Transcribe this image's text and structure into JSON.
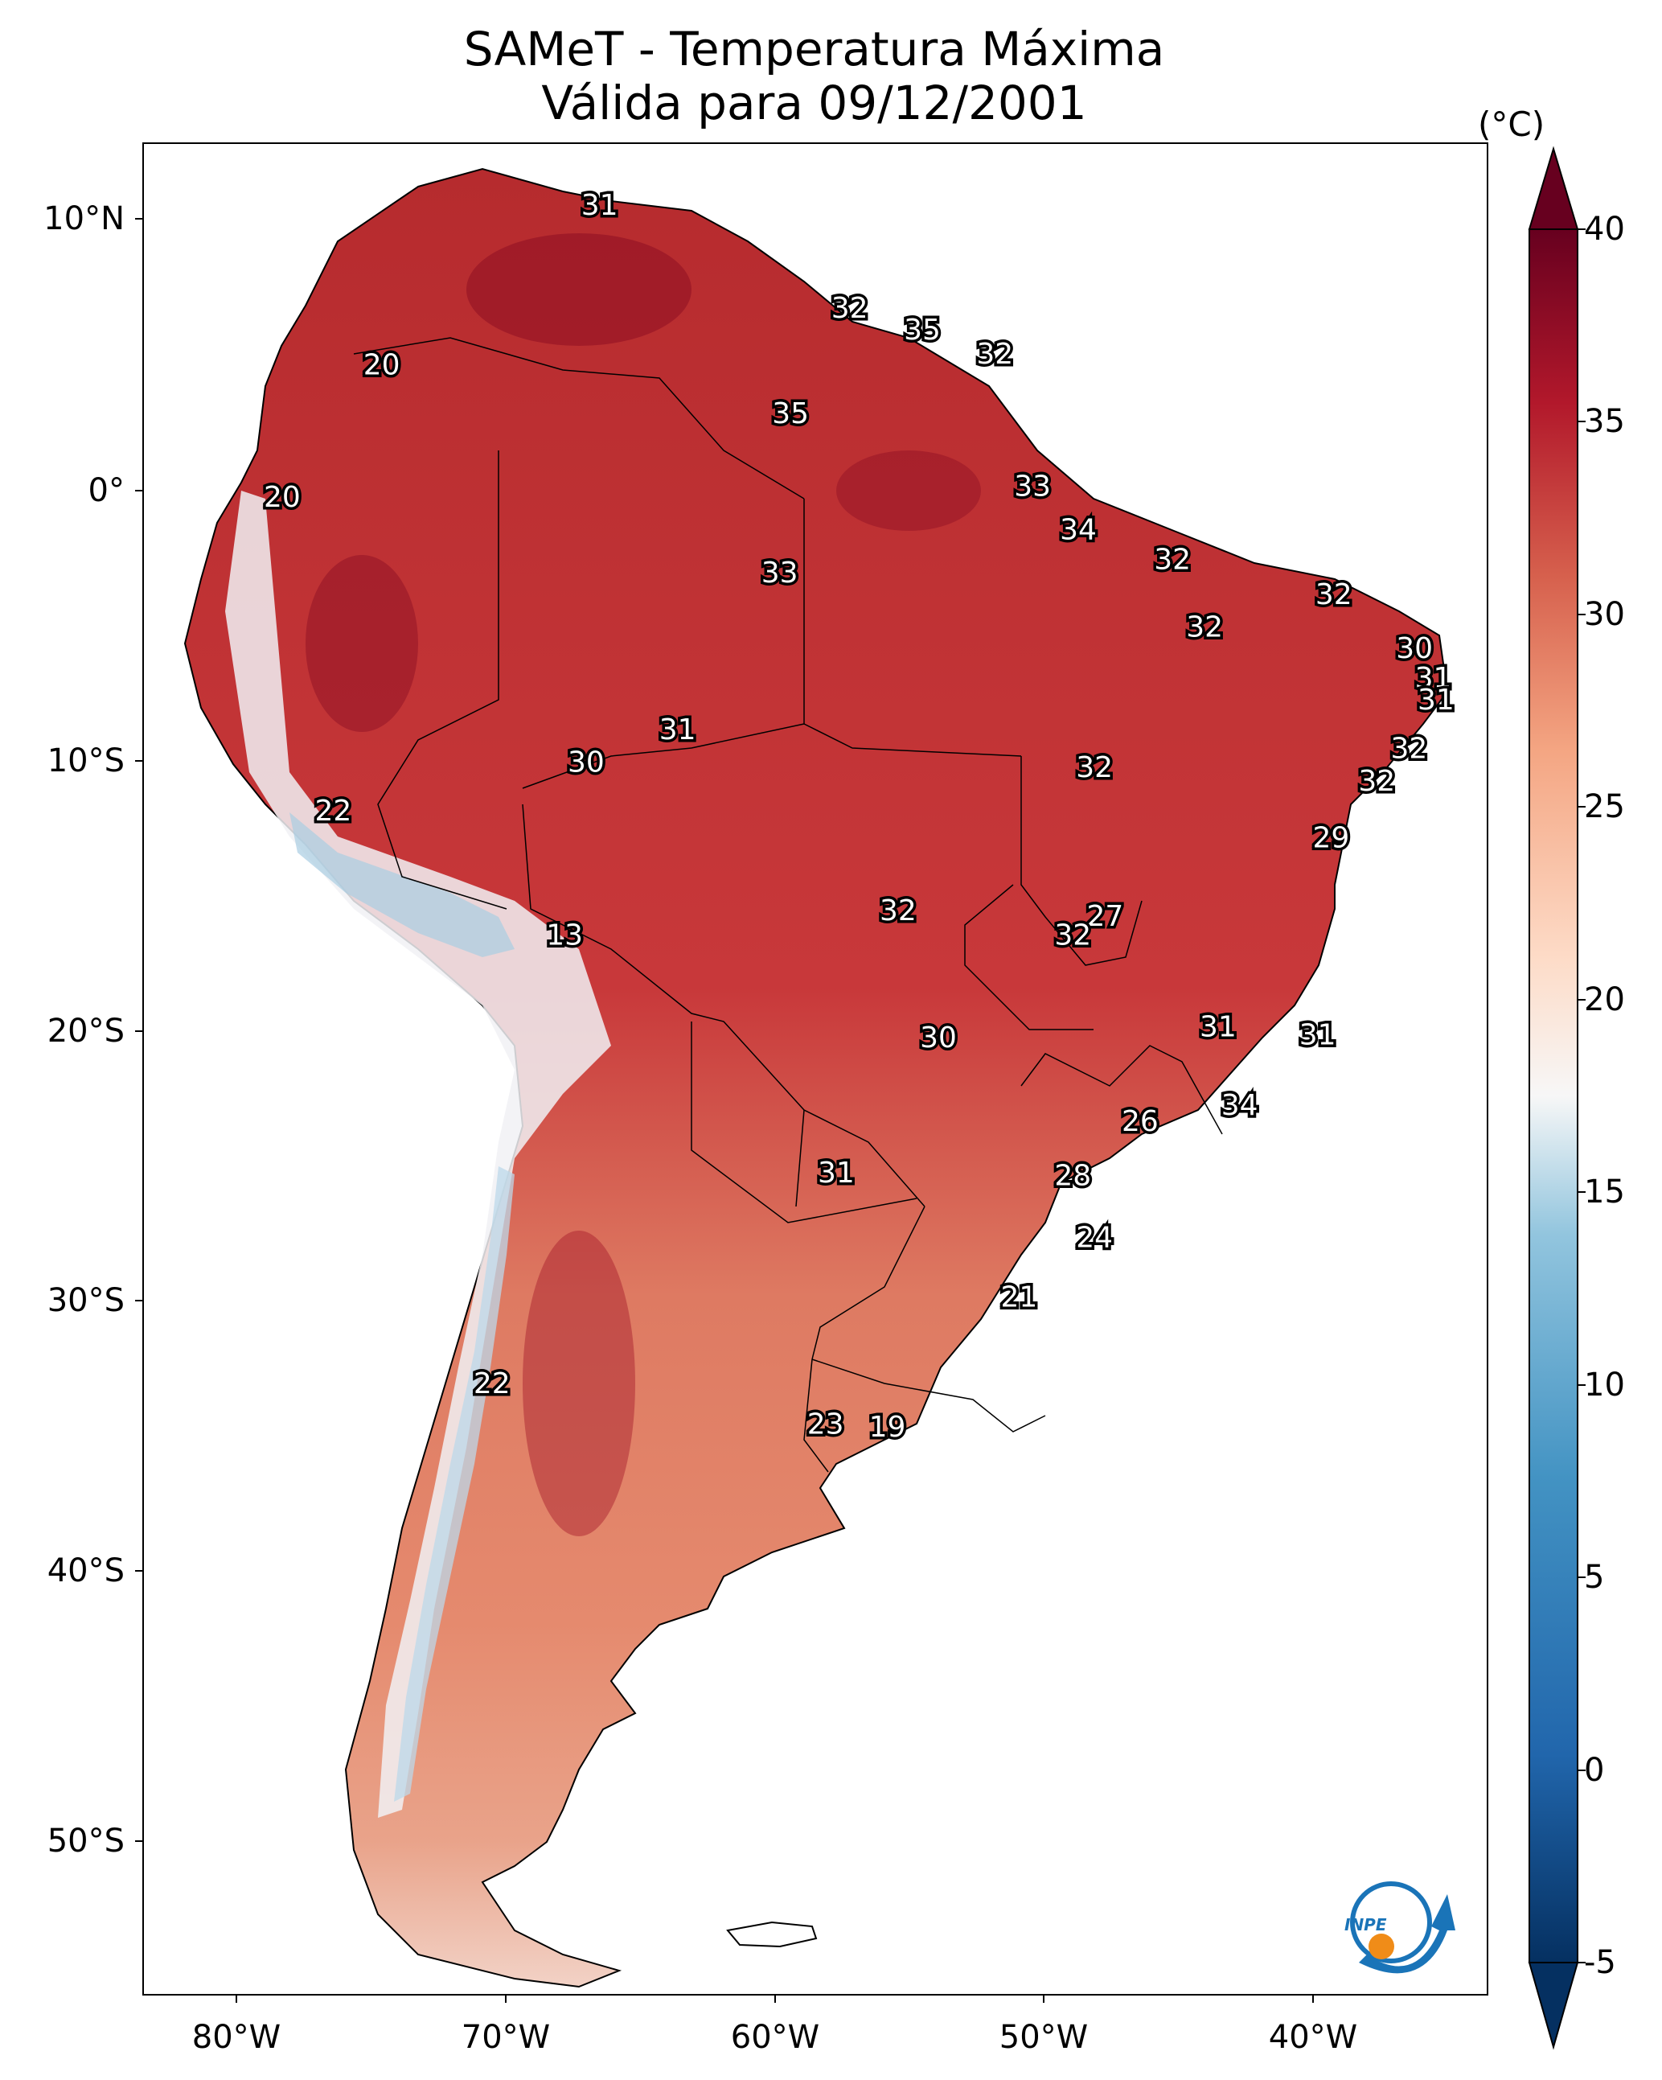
{
  "title": "SAMeT - Temperatura Máxima",
  "subtitle": "Válida para 09/12/2001",
  "units": "(°C)",
  "lat_ticks": [
    "10°N",
    "0°",
    "10°S",
    "20°S",
    "30°S",
    "40°S",
    "50°S"
  ],
  "lon_ticks": [
    "80°W",
    "70°W",
    "60°W",
    "50°W",
    "40°W"
  ],
  "colorbar_ticks": [
    "40",
    "35",
    "30",
    "25",
    "20",
    "15",
    "10",
    "5",
    "0",
    "-5"
  ],
  "logo_text": "INPE",
  "colors": {
    "hot": "#67001f",
    "warm": "#c53a3a",
    "mild": "#e8826a",
    "cool": "#f7f7f7",
    "cold": "#4393c3",
    "frigid": "#053061",
    "logo_blue": "#1a74b8",
    "logo_orange": "#f08c18"
  },
  "chart_data": {
    "type": "heatmap",
    "title": "SAMeT - Temperatura Máxima",
    "subtitle": "Válida para 09/12/2001",
    "variable": "maximum temperature",
    "units": "°C",
    "colorbar_range": [
      -5,
      40
    ],
    "lon_range": [
      -83,
      -33
    ],
    "lat_range": [
      -56,
      13
    ],
    "labels": [
      {
        "value": "31",
        "lon": -66.5,
        "lat": 10.5
      },
      {
        "value": "32",
        "lon": -57.2,
        "lat": 6.7
      },
      {
        "value": "35",
        "lon": -54.5,
        "lat": 5.9
      },
      {
        "value": "32",
        "lon": -51.8,
        "lat": 5.0
      },
      {
        "value": "20",
        "lon": -74.6,
        "lat": 4.6
      },
      {
        "value": "35",
        "lon": -59.4,
        "lat": 2.8
      },
      {
        "value": "33",
        "lon": -50.4,
        "lat": 0.1
      },
      {
        "value": "20",
        "lon": -78.3,
        "lat": -0.3
      },
      {
        "value": "34",
        "lon": -48.7,
        "lat": -1.5
      },
      {
        "value": "32",
        "lon": -45.2,
        "lat": -2.6
      },
      {
        "value": "33",
        "lon": -59.8,
        "lat": -3.1
      },
      {
        "value": "32",
        "lon": -39.2,
        "lat": -3.9
      },
      {
        "value": "32",
        "lon": -44.0,
        "lat": -5.1
      },
      {
        "value": "30",
        "lon": -36.2,
        "lat": -5.9
      },
      {
        "value": "31",
        "lon": -35.5,
        "lat": -7.0
      },
      {
        "value": "31",
        "lon": -35.4,
        "lat": -7.8
      },
      {
        "value": "31",
        "lon": -63.6,
        "lat": -8.9
      },
      {
        "value": "30",
        "lon": -67.0,
        "lat": -10.1
      },
      {
        "value": "32",
        "lon": -36.4,
        "lat": -9.6
      },
      {
        "value": "32",
        "lon": -48.1,
        "lat": -10.3
      },
      {
        "value": "32",
        "lon": -37.6,
        "lat": -10.8
      },
      {
        "value": "22",
        "lon": -76.4,
        "lat": -11.9
      },
      {
        "value": "29",
        "lon": -39.3,
        "lat": -12.9
      },
      {
        "value": "27",
        "lon": -47.7,
        "lat": -15.8
      },
      {
        "value": "32",
        "lon": -55.4,
        "lat": -15.6
      },
      {
        "value": "32",
        "lon": -48.9,
        "lat": -16.5
      },
      {
        "value": "13",
        "lon": -67.8,
        "lat": -16.5
      },
      {
        "value": "31",
        "lon": -43.5,
        "lat": -19.9
      },
      {
        "value": "31",
        "lon": -39.8,
        "lat": -20.2
      },
      {
        "value": "30",
        "lon": -53.9,
        "lat": -20.3
      },
      {
        "value": "34",
        "lon": -42.7,
        "lat": -22.8
      },
      {
        "value": "26",
        "lon": -46.4,
        "lat": -23.4
      },
      {
        "value": "31",
        "lon": -57.7,
        "lat": -25.3
      },
      {
        "value": "28",
        "lon": -48.9,
        "lat": -25.4
      },
      {
        "value": "24",
        "lon": -48.1,
        "lat": -27.7
      },
      {
        "value": "21",
        "lon": -50.9,
        "lat": -29.9
      },
      {
        "value": "22",
        "lon": -70.5,
        "lat": -33.1
      },
      {
        "value": "23",
        "lon": -58.1,
        "lat": -34.6
      },
      {
        "value": "19",
        "lon": -55.8,
        "lat": -34.7
      }
    ]
  }
}
